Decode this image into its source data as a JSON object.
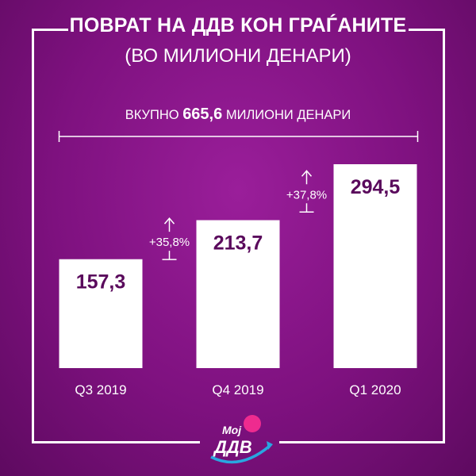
{
  "header": {
    "title": "ПОВРАТ НА ДДВ КОН ГРАЃАНИТЕ",
    "subtitle": "(ВО МИЛИОНИ ДЕНАРИ)"
  },
  "total": {
    "prefix": "ВКУПНО",
    "value": "665,6",
    "suffix": "МИЛИОНИ ДЕНАРИ"
  },
  "chart_data": {
    "type": "bar",
    "categories": [
      "Q3 2019",
      "Q4 2019",
      "Q1 2020"
    ],
    "values": [
      157.3,
      213.7,
      294.5
    ],
    "value_labels": [
      "157,3",
      "213,7",
      "294,5"
    ],
    "growth_labels": [
      "+35,8%",
      "+37,8%"
    ],
    "title": "ПОВРАТ НА ДДВ КОН ГРАЃАНИТЕ",
    "subtitle": "(ВО МИЛИОНИ ДЕНАРИ)",
    "xlabel": "",
    "ylabel": "",
    "ylim": [
      0,
      294.5
    ],
    "grid": false,
    "colors": {
      "bar": "#ffffff",
      "value_text": "#5a0a5c",
      "background": "#7e117f"
    }
  },
  "logo": {
    "line1": "Мој",
    "line2": "ДДВ"
  }
}
